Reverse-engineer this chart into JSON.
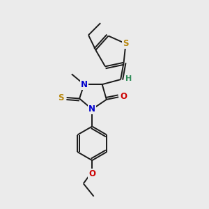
{
  "background_color": "#ebebeb",
  "bond_color": "#1a1a1a",
  "atom_colors": {
    "S": "#b8860b",
    "N": "#0000cc",
    "O": "#cc0000",
    "H": "#2e8b57",
    "C": "#1a1a1a"
  },
  "figsize": [
    3.0,
    3.0
  ],
  "dpi": 100
}
